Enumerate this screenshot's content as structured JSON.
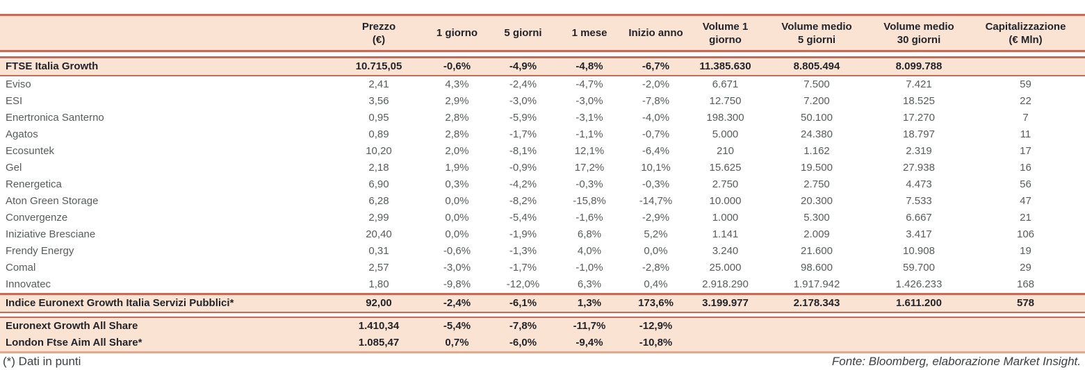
{
  "colors": {
    "accent_line": "#C96A59",
    "row_fill": "#FBE3D3",
    "bottom_line": "#E2A891",
    "bold_text": "#21252B",
    "body_text": "#565C5C"
  },
  "table": {
    "columns": [
      {
        "id": "name",
        "line1": "",
        "line2": ""
      },
      {
        "id": "prezzo",
        "line1": "Prezzo",
        "line2": "(€)"
      },
      {
        "id": "g1",
        "line1": "1 giorno",
        "line2": ""
      },
      {
        "id": "g5",
        "line1": "5 giorni",
        "line2": ""
      },
      {
        "id": "m1",
        "line1": "1 mese",
        "line2": ""
      },
      {
        "id": "inizio",
        "line1": "Inizio anno",
        "line2": ""
      },
      {
        "id": "vol1",
        "line1": "Volume 1",
        "line2": "giorno"
      },
      {
        "id": "vol5",
        "line1": "Volume medio",
        "line2": "5 giorni"
      },
      {
        "id": "vol30",
        "line1": "Volume medio",
        "line2": "30 giorni"
      },
      {
        "id": "cap",
        "line1": "Capitalizzazione",
        "line2": "(€ Mln)"
      }
    ],
    "index_row": {
      "name": "FTSE Italia Growth",
      "values": [
        "10.715,05",
        "-0,6%",
        "-4,9%",
        "-4,8%",
        "-6,7%",
        "11.385.630",
        "8.805.494",
        "8.099.788",
        ""
      ]
    },
    "stocks": [
      {
        "name": "Eviso",
        "values": [
          "2,41",
          "4,3%",
          "-2,4%",
          "-4,7%",
          "-2,0%",
          "6.671",
          "7.500",
          "7.421",
          "59"
        ]
      },
      {
        "name": "ESI",
        "values": [
          "3,56",
          "2,9%",
          "-3,0%",
          "-3,0%",
          "-7,8%",
          "12.750",
          "7.200",
          "18.525",
          "22"
        ]
      },
      {
        "name": "Enertronica Santerno",
        "values": [
          "0,95",
          "2,8%",
          "-5,9%",
          "-3,1%",
          "-4,0%",
          "198.300",
          "50.100",
          "17.270",
          "7"
        ]
      },
      {
        "name": "Agatos",
        "values": [
          "0,89",
          "2,8%",
          "-1,7%",
          "-1,1%",
          "-0,7%",
          "5.000",
          "24.380",
          "18.797",
          "11"
        ]
      },
      {
        "name": "Ecosuntek",
        "values": [
          "10,20",
          "2,0%",
          "-8,1%",
          "12,1%",
          "-6,4%",
          "210",
          "1.162",
          "2.319",
          "17"
        ]
      },
      {
        "name": "Gel",
        "values": [
          "2,18",
          "1,9%",
          "-0,9%",
          "17,2%",
          "10,1%",
          "15.625",
          "19.500",
          "27.938",
          "16"
        ]
      },
      {
        "name": "Renergetica",
        "values": [
          "6,90",
          "0,3%",
          "-4,2%",
          "-0,3%",
          "-0,3%",
          "2.750",
          "2.750",
          "4.473",
          "56"
        ]
      },
      {
        "name": "Aton Green Storage",
        "values": [
          "6,28",
          "0,0%",
          "-8,2%",
          "-15,8%",
          "-14,7%",
          "10.000",
          "20.300",
          "7.533",
          "47"
        ]
      },
      {
        "name": "Convergenze",
        "values": [
          "2,99",
          "0,0%",
          "-5,4%",
          "-1,6%",
          "-2,9%",
          "1.000",
          "5.300",
          "6.667",
          "21"
        ]
      },
      {
        "name": "Iniziative Bresciane",
        "values": [
          "20,40",
          "0,0%",
          "-1,9%",
          "6,8%",
          "5,2%",
          "1.141",
          "2.009",
          "3.417",
          "106"
        ]
      },
      {
        "name": "Frendy Energy",
        "values": [
          "0,31",
          "-0,6%",
          "-1,3%",
          "4,0%",
          "0,0%",
          "3.240",
          "21.600",
          "10.908",
          "19"
        ]
      },
      {
        "name": "Comal",
        "values": [
          "2,57",
          "-3,0%",
          "-1,7%",
          "-1,0%",
          "-2,8%",
          "25.000",
          "98.600",
          "59.700",
          "29"
        ]
      },
      {
        "name": "Innovatec",
        "values": [
          "1,80",
          "-9,8%",
          "-12,0%",
          "6,3%",
          "0,4%",
          "2.918.290",
          "1.917.942",
          "1.426.233",
          "168"
        ]
      }
    ],
    "sector_row": {
      "name": "Indice Euronext Growth Italia Servizi Pubblici*",
      "values": [
        "92,00",
        "-2,4%",
        "-6,1%",
        "1,3%",
        "173,6%",
        "3.199.977",
        "2.178.343",
        "1.611.200",
        "578"
      ]
    },
    "benchmarks": [
      {
        "name": "Euronext Growth All Share",
        "values": [
          "1.410,34",
          "-5,4%",
          "-7,8%",
          "-11,7%",
          "-12,9%",
          "",
          "",
          "",
          ""
        ]
      },
      {
        "name": "London Ftse Aim All Share*",
        "values": [
          "1.085,47",
          "0,7%",
          "-6,0%",
          "-9,4%",
          "-10,8%",
          "",
          "",
          "",
          ""
        ]
      }
    ]
  },
  "footer": {
    "note": "(*) Dati in punti",
    "source": "Fonte: Bloomberg, elaborazione Market Insight."
  }
}
